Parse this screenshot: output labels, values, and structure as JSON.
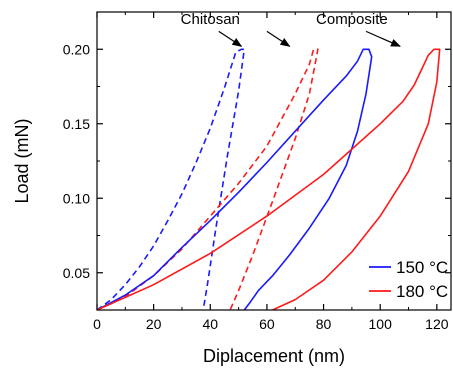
{
  "chart_data": {
    "type": "line",
    "xlabel": "Diplacement (nm)",
    "ylabel": "Load (mN)",
    "xlim": [
      0,
      125
    ],
    "ylim": [
      0.025,
      0.225
    ],
    "x_ticks": [
      0,
      20,
      40,
      60,
      80,
      100,
      120
    ],
    "y_ticks": [
      0.05,
      0.1,
      0.15,
      0.2
    ],
    "x_tick_labels": [
      "0",
      "20",
      "40",
      "60",
      "80",
      "100",
      "120"
    ],
    "y_tick_labels": [
      "0.05",
      "0.10",
      "0.15",
      "0.20"
    ],
    "grid": false,
    "legend_position": "bottom-right",
    "colors": {
      "150C": "#1a1aff",
      "180C": "#ff1a1a"
    },
    "legend": [
      {
        "label": "150 °C",
        "color": "#1a1aff"
      },
      {
        "label": "180 °C",
        "color": "#ff1a1a"
      }
    ],
    "annotations": [
      {
        "text": "Chitosan",
        "text_at": [
          40,
          0.217
        ],
        "arrow_from": [
          43,
          0.212
        ],
        "arrow_to": [
          51,
          0.202
        ]
      },
      {
        "text": "Composite",
        "text_at": [
          90,
          0.217
        ],
        "arrow_from": [
          95,
          0.212
        ],
        "arrow_to": [
          107,
          0.202
        ]
      },
      {
        "text": "",
        "text_at": [
          0,
          0
        ],
        "arrow_from": [
          60,
          0.212
        ],
        "arrow_to": [
          68,
          0.202
        ]
      }
    ],
    "series": [
      {
        "sample": "Chitosan",
        "temperature": "150 °C",
        "style": "dashed",
        "color": "#1a1aff",
        "x": [
          0,
          5,
          10,
          15,
          20,
          25,
          30,
          35,
          40,
          45,
          49,
          51,
          52,
          50,
          46,
          42,
          39,
          37.5
        ],
        "y": [
          0.025,
          0.032,
          0.042,
          0.054,
          0.068,
          0.085,
          0.103,
          0.124,
          0.147,
          0.174,
          0.198,
          0.2,
          0.2,
          0.172,
          0.128,
          0.08,
          0.042,
          0.025
        ]
      },
      {
        "sample": "Chitosan",
        "temperature": "180 °C",
        "style": "dashed",
        "color": "#ff1a1a",
        "x": [
          0,
          10,
          20,
          30,
          40,
          50,
          60,
          70,
          75,
          76.5,
          78,
          75,
          70,
          62,
          55,
          50,
          47
        ],
        "y": [
          0.025,
          0.034,
          0.048,
          0.066,
          0.088,
          0.11,
          0.135,
          0.17,
          0.19,
          0.2,
          0.2,
          0.17,
          0.14,
          0.098,
          0.062,
          0.038,
          0.025
        ]
      },
      {
        "sample": "Composite",
        "temperature": "150 °C",
        "style": "solid",
        "color": "#1a1aff",
        "x": [
          0,
          10,
          20,
          30,
          40,
          50,
          60,
          70,
          80,
          88,
          92,
          94,
          96,
          97,
          95,
          92,
          88,
          82,
          75,
          68,
          62,
          57,
          54,
          52
        ],
        "y": [
          0.025,
          0.035,
          0.048,
          0.067,
          0.085,
          0.104,
          0.124,
          0.145,
          0.166,
          0.182,
          0.192,
          0.2,
          0.2,
          0.195,
          0.17,
          0.145,
          0.122,
          0.1,
          0.08,
          0.062,
          0.048,
          0.038,
          0.03,
          0.025
        ]
      },
      {
        "sample": "Composite",
        "temperature": "180 °C",
        "style": "solid",
        "color": "#ff1a1a",
        "x": [
          0,
          20,
          40,
          60,
          80,
          100,
          108,
          112,
          115,
          117,
          119,
          121,
          120,
          117,
          110,
          100,
          90,
          80,
          70,
          62
        ],
        "y": [
          0.025,
          0.042,
          0.063,
          0.088,
          0.116,
          0.15,
          0.165,
          0.176,
          0.188,
          0.196,
          0.2,
          0.2,
          0.178,
          0.15,
          0.118,
          0.088,
          0.064,
          0.045,
          0.032,
          0.025
        ]
      }
    ]
  }
}
